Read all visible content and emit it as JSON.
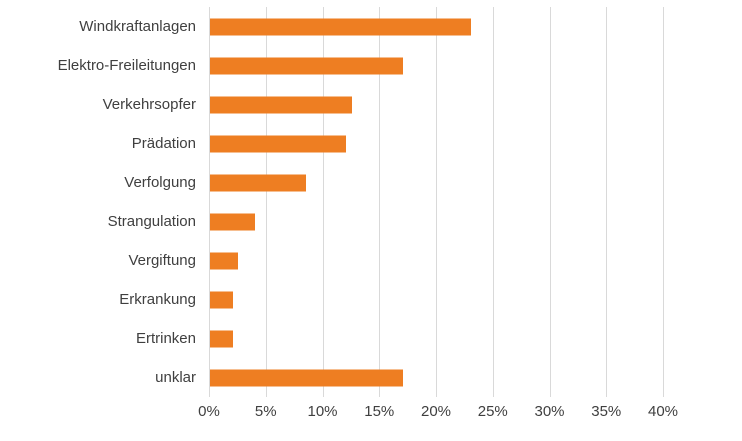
{
  "chart_data": {
    "type": "bar",
    "orientation": "horizontal",
    "title": "",
    "xlabel": "",
    "ylabel": "",
    "categories": [
      "Windkraftanlagen",
      "Elektro-Freileitungen",
      "Verkehrsopfer",
      "Prädation",
      "Verfolgung",
      "Strangulation",
      "Vergiftung",
      "Erkrankung",
      "Ertrinken",
      "unklar"
    ],
    "values": [
      23,
      17,
      12.5,
      12,
      8.5,
      4,
      2.5,
      2,
      2,
      17
    ],
    "unit": "%",
    "xlim": [
      0,
      40
    ],
    "x_tick_step": 5,
    "x_tick_labels": [
      "0%",
      "5%",
      "10%",
      "15%",
      "20%",
      "25%",
      "30%",
      "35%",
      "40%"
    ],
    "grid": "vertical",
    "legend": "none",
    "bar_color": "#ee7e22",
    "gridline_color": "#d9d9d9",
    "text_color": "#3f3f3f",
    "background_color": "#ffffff"
  }
}
